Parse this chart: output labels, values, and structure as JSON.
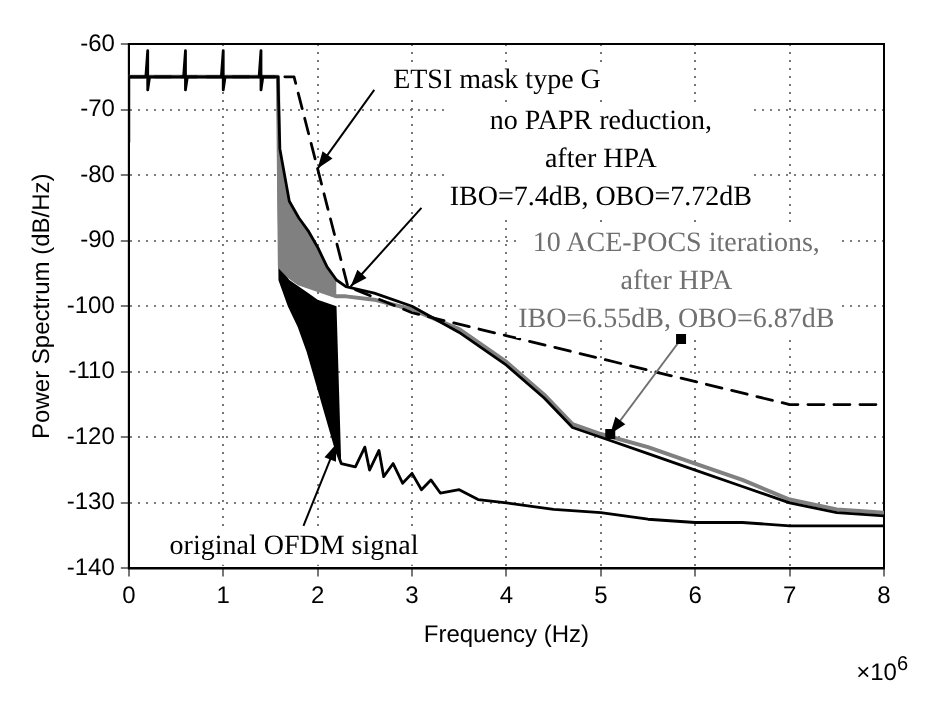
{
  "chart_data": {
    "type": "line",
    "xlabel": "Frequency (Hz)",
    "ylabel": "Power Spectrum (dB/Hz)",
    "xlim": [
      0,
      8
    ],
    "xticks": [
      0,
      1,
      2,
      3,
      4,
      5,
      6,
      7,
      8
    ],
    "ylim": [
      -140,
      -60
    ],
    "yticks": [
      -140,
      -130,
      -120,
      -110,
      -100,
      -90,
      -80,
      -70,
      -60
    ],
    "grid": true,
    "legend": false,
    "marker": "none",
    "annotations": [
      {
        "text": "ETSI mask type G",
        "x": 2,
        "y": -79
      },
      {
        "text": "no PAPR reduction,\nafter HPA\nIBO=7.4dB, OBO=7.72dB",
        "x": 2.35,
        "y": -97
      },
      {
        "text": "10 ACE-POCS iterations,\nafter HPA\nIBO=6.55dB, OBO=6.87dB",
        "x": 5.1,
        "y": -119.5
      },
      {
        "text": "original OFDM signal",
        "x": 2.2,
        "y": -121
      },
      "×10$^{6}$"
    ],
    "series": [
      {
        "color": "#000000",
        "line_style": "dashed",
        "x": [
          0,
          1.75,
          2.32,
          3,
          7,
          8
        ],
        "values": [
          -65,
          -65,
          -97,
          -101,
          -115,
          -115
        ]
      },
      {
        "color": "#000000",
        "line_style": "solid",
        "x": [
          0,
          0,
          0.18,
          0.2,
          0.2,
          0.22,
          0.58,
          0.6,
          0.6,
          0.62,
          0.98,
          1.0,
          1.0,
          1.02,
          1.38,
          1.4,
          1.4,
          1.42,
          1.58,
          1.6,
          1.7,
          1.8,
          1.9,
          2.0,
          2.1,
          2.2,
          2.3,
          2.6,
          3,
          3.5,
          4,
          4.4,
          4.7,
          5,
          5.5,
          6,
          6.5,
          7,
          7.5,
          8
        ],
        "values": [
          -75,
          -65,
          -65,
          -61,
          -67,
          -65,
          -65,
          -61,
          -67,
          -65,
          -65,
          -61,
          -67,
          -65,
          -65,
          -61,
          -67,
          -65,
          -65,
          -76,
          -84,
          -86.5,
          -88.5,
          -91,
          -94,
          -96,
          -97,
          -98,
          -100,
          -104,
          -109,
          -114,
          -118.5,
          -120,
          -122.5,
          -125,
          -127.5,
          -130,
          -131.5,
          -132
        ]
      },
      {
        "color": "#808080",
        "line_style": "solid",
        "x": [
          0,
          1.58,
          1.6,
          1.7,
          1.8,
          1.9,
          2.0,
          2.1,
          2.2,
          2.3,
          2.6,
          3,
          3.5,
          4,
          4.4,
          4.7,
          5,
          5.5,
          6,
          6.5,
          7,
          7.5,
          8
        ],
        "values": [
          -65,
          -65,
          -94,
          -95.5,
          -96.5,
          -97,
          -97.5,
          -98,
          -98.5,
          -98.5,
          -99,
          -100.5,
          -103.5,
          -108.5,
          -113.5,
          -118,
          -119.5,
          -121.5,
          -124,
          -126.5,
          -129.5,
          -131,
          -131.5
        ],
        "lower": [
          null,
          null,
          -94,
          -95.5,
          -96.5,
          -97,
          -97.5,
          -98,
          -98.5,
          null,
          null,
          null,
          null,
          null,
          null,
          null,
          null,
          null,
          null,
          null,
          null,
          null,
          null
        ],
        "upper": [
          null,
          null,
          -76,
          -84,
          -86.5,
          -88.5,
          -91,
          -94,
          -96,
          null,
          null,
          null,
          null,
          null,
          null,
          null,
          null,
          null,
          null,
          null,
          null,
          null,
          null
        ]
      },
      {
        "color": "#000000",
        "line_style": "solid",
        "x": [
          0,
          1.58,
          1.6,
          1.7,
          1.8,
          1.9,
          2.0,
          2.1,
          2.2,
          2.25,
          2.4,
          2.5,
          2.55,
          2.65,
          2.7,
          2.8,
          2.9,
          3,
          3.1,
          3.2,
          3.3,
          3.5,
          3.7,
          4,
          4.5,
          5,
          5.5,
          6,
          6.5,
          7,
          8
        ],
        "values": [
          -65,
          -65,
          -96,
          -100,
          -103,
          -107,
          -112,
          -117,
          -122,
          -124,
          -124.5,
          -121.5,
          -125,
          -122,
          -126,
          -124,
          -127,
          -125.5,
          -128,
          -126.5,
          -128.5,
          -128,
          -129.5,
          -130,
          -131,
          -131.5,
          -132.5,
          -133,
          -133,
          -133.5,
          -133.5
        ],
        "lower": [
          null,
          null,
          -96,
          -100,
          -103,
          -107,
          -112,
          -117,
          -122,
          -124,
          null,
          null,
          null,
          null,
          null,
          null,
          null,
          null,
          null,
          null,
          null,
          null,
          null,
          null,
          null,
          null,
          null,
          null,
          null,
          null,
          null
        ],
        "upper": [
          null,
          null,
          -94,
          -96,
          -97,
          -98,
          -99,
          -99.5,
          -100,
          -124,
          null,
          null,
          null,
          null,
          null,
          null,
          null,
          null,
          null,
          null,
          null,
          null,
          null,
          null,
          null,
          null,
          null,
          null,
          null,
          null,
          null
        ]
      }
    ]
  }
}
